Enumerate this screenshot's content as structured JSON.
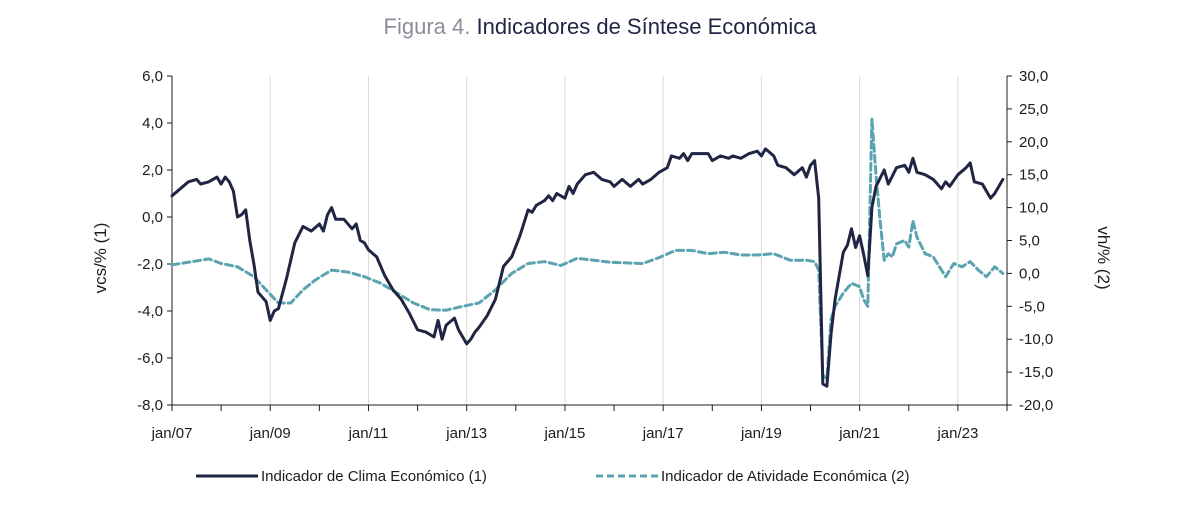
{
  "figure": {
    "number_label": "Figura 4.",
    "title": "Indicadores de Síntese Económica"
  },
  "chart_data": {
    "type": "line",
    "title": "Indicadores de Síntese Económica",
    "ylabel_left": "vcs/% (1)",
    "ylabel_right": "vh/% (2)",
    "xlabel": "",
    "x_start": "2007-01",
    "x_end": "2023-12",
    "xticks": [
      "jan/07",
      "jan/09",
      "jan/11",
      "jan/13",
      "jan/15",
      "jan/17",
      "jan/19",
      "jan/21",
      "jan/23"
    ],
    "ylim_left": [
      -8,
      6
    ],
    "yticks_left": [
      "6,0",
      "4,0",
      "2,0",
      "0,0",
      "-2,0",
      "-4,0",
      "-6,0",
      "-8,0"
    ],
    "ylim_right": [
      -20,
      30
    ],
    "yticks_right": [
      "30,0",
      "25,0",
      "20,0",
      "15,0",
      "10,0",
      "5,0",
      "0,0",
      "-5,0",
      "-10,0",
      "-15,0",
      "-20,0"
    ],
    "grid": "vertical lines at yearly ticks",
    "legend_position": "bottom",
    "colors": {
      "clima": "#1f2542",
      "atividade": "#5ba3b0"
    },
    "series": [
      {
        "name": "Indicador de Clima Económico (1)",
        "axis": "left",
        "style": "solid",
        "points": [
          [
            "2007-01",
            0.9
          ],
          [
            "2007-03",
            1.2
          ],
          [
            "2007-05",
            1.5
          ],
          [
            "2007-07",
            1.6
          ],
          [
            "2007-08",
            1.4
          ],
          [
            "2007-10",
            1.5
          ],
          [
            "2007-12",
            1.7
          ],
          [
            "2008-01",
            1.4
          ],
          [
            "2008-02",
            1.7
          ],
          [
            "2008-03",
            1.5
          ],
          [
            "2008-04",
            1.1
          ],
          [
            "2008-05",
            0.0
          ],
          [
            "2008-06",
            0.1
          ],
          [
            "2008-07",
            0.3
          ],
          [
            "2008-08",
            -1.0
          ],
          [
            "2008-09",
            -2.0
          ],
          [
            "2008-10",
            -3.2
          ],
          [
            "2008-12",
            -3.6
          ],
          [
            "2009-01",
            -4.4
          ],
          [
            "2009-02",
            -4.0
          ],
          [
            "2009-03",
            -3.9
          ],
          [
            "2009-05",
            -2.6
          ],
          [
            "2009-07",
            -1.1
          ],
          [
            "2009-09",
            -0.4
          ],
          [
            "2009-11",
            -0.6
          ],
          [
            "2010-01",
            -0.3
          ],
          [
            "2010-02",
            -0.6
          ],
          [
            "2010-03",
            0.1
          ],
          [
            "2010-04",
            0.4
          ],
          [
            "2010-05",
            -0.1
          ],
          [
            "2010-07",
            -0.1
          ],
          [
            "2010-09",
            -0.5
          ],
          [
            "2010-10",
            -0.3
          ],
          [
            "2010-11",
            -1.0
          ],
          [
            "2010-12",
            -1.1
          ],
          [
            "2011-01",
            -1.4
          ],
          [
            "2011-03",
            -1.7
          ],
          [
            "2011-05",
            -2.5
          ],
          [
            "2011-07",
            -3.1
          ],
          [
            "2011-09",
            -3.5
          ],
          [
            "2011-11",
            -4.1
          ],
          [
            "2012-01",
            -4.8
          ],
          [
            "2012-03",
            -4.9
          ],
          [
            "2012-05",
            -5.1
          ],
          [
            "2012-06",
            -4.4
          ],
          [
            "2012-07",
            -5.2
          ],
          [
            "2012-08",
            -4.6
          ],
          [
            "2012-10",
            -4.3
          ],
          [
            "2012-11",
            -4.8
          ],
          [
            "2013-01",
            -5.4
          ],
          [
            "2013-02",
            -5.2
          ],
          [
            "2013-03",
            -4.9
          ],
          [
            "2013-04",
            -4.7
          ],
          [
            "2013-06",
            -4.2
          ],
          [
            "2013-08",
            -3.5
          ],
          [
            "2013-10",
            -2.1
          ],
          [
            "2013-12",
            -1.7
          ],
          [
            "2014-02",
            -0.8
          ],
          [
            "2014-04",
            0.3
          ],
          [
            "2014-05",
            0.2
          ],
          [
            "2014-06",
            0.5
          ],
          [
            "2014-08",
            0.7
          ],
          [
            "2014-09",
            0.9
          ],
          [
            "2014-10",
            0.7
          ],
          [
            "2014-11",
            1.0
          ],
          [
            "2015-01",
            0.8
          ],
          [
            "2015-02",
            1.3
          ],
          [
            "2015-03",
            1.0
          ],
          [
            "2015-04",
            1.4
          ],
          [
            "2015-06",
            1.8
          ],
          [
            "2015-08",
            1.9
          ],
          [
            "2015-10",
            1.6
          ],
          [
            "2015-12",
            1.5
          ],
          [
            "2016-01",
            1.3
          ],
          [
            "2016-03",
            1.6
          ],
          [
            "2016-05",
            1.3
          ],
          [
            "2016-07",
            1.6
          ],
          [
            "2016-08",
            1.4
          ],
          [
            "2016-10",
            1.6
          ],
          [
            "2016-12",
            1.9
          ],
          [
            "2017-02",
            2.1
          ],
          [
            "2017-03",
            2.6
          ],
          [
            "2017-05",
            2.5
          ],
          [
            "2017-06",
            2.7
          ],
          [
            "2017-07",
            2.4
          ],
          [
            "2017-08",
            2.7
          ],
          [
            "2017-10",
            2.7
          ],
          [
            "2017-12",
            2.7
          ],
          [
            "2018-01",
            2.4
          ],
          [
            "2018-03",
            2.6
          ],
          [
            "2018-05",
            2.5
          ],
          [
            "2018-06",
            2.6
          ],
          [
            "2018-08",
            2.5
          ],
          [
            "2018-10",
            2.7
          ],
          [
            "2018-12",
            2.8
          ],
          [
            "2019-01",
            2.6
          ],
          [
            "2019-02",
            2.9
          ],
          [
            "2019-04",
            2.6
          ],
          [
            "2019-05",
            2.2
          ],
          [
            "2019-07",
            2.1
          ],
          [
            "2019-09",
            1.8
          ],
          [
            "2019-11",
            2.1
          ],
          [
            "2019-12",
            1.7
          ],
          [
            "2020-01",
            2.2
          ],
          [
            "2020-02",
            2.4
          ],
          [
            "2020-03",
            0.8
          ],
          [
            "2020-04",
            -7.1
          ],
          [
            "2020-05",
            -7.2
          ],
          [
            "2020-06",
            -5.0
          ],
          [
            "2020-07",
            -3.5
          ],
          [
            "2020-09",
            -1.5
          ],
          [
            "2020-10",
            -1.2
          ],
          [
            "2020-11",
            -0.5
          ],
          [
            "2020-12",
            -1.3
          ],
          [
            "2021-01",
            -0.8
          ],
          [
            "2021-02",
            -1.6
          ],
          [
            "2021-03",
            -2.5
          ],
          [
            "2021-04",
            0.4
          ],
          [
            "2021-05",
            1.3
          ],
          [
            "2021-07",
            2.0
          ],
          [
            "2021-08",
            1.4
          ],
          [
            "2021-10",
            2.1
          ],
          [
            "2021-12",
            2.2
          ],
          [
            "2022-01",
            1.9
          ],
          [
            "2022-02",
            2.5
          ],
          [
            "2022-03",
            1.9
          ],
          [
            "2022-05",
            1.8
          ],
          [
            "2022-07",
            1.6
          ],
          [
            "2022-09",
            1.2
          ],
          [
            "2022-10",
            1.5
          ],
          [
            "2022-11",
            1.3
          ],
          [
            "2023-01",
            1.8
          ],
          [
            "2023-03",
            2.1
          ],
          [
            "2023-04",
            2.3
          ],
          [
            "2023-05",
            1.5
          ],
          [
            "2023-07",
            1.4
          ],
          [
            "2023-08",
            1.1
          ],
          [
            "2023-09",
            0.8
          ],
          [
            "2023-10",
            1.0
          ],
          [
            "2023-12",
            1.6
          ]
        ]
      },
      {
        "name": "Indicador de Atividade Económica (2)",
        "axis": "right",
        "style": "dashed",
        "points": [
          [
            "2007-01",
            1.3
          ],
          [
            "2007-06",
            1.8
          ],
          [
            "2007-10",
            2.2
          ],
          [
            "2008-01",
            1.5
          ],
          [
            "2008-05",
            1.0
          ],
          [
            "2008-09",
            -0.5
          ],
          [
            "2008-12",
            -2.5
          ],
          [
            "2009-03",
            -4.5
          ],
          [
            "2009-06",
            -4.5
          ],
          [
            "2009-09",
            -2.5
          ],
          [
            "2009-12",
            -1.0
          ],
          [
            "2010-04",
            0.5
          ],
          [
            "2010-08",
            0.2
          ],
          [
            "2010-12",
            -0.5
          ],
          [
            "2011-04",
            -1.5
          ],
          [
            "2011-08",
            -3.0
          ],
          [
            "2011-12",
            -4.5
          ],
          [
            "2012-04",
            -5.5
          ],
          [
            "2012-08",
            -5.6
          ],
          [
            "2012-12",
            -5.0
          ],
          [
            "2013-04",
            -4.5
          ],
          [
            "2013-08",
            -2.5
          ],
          [
            "2013-12",
            0.0
          ],
          [
            "2014-04",
            1.5
          ],
          [
            "2014-08",
            1.8
          ],
          [
            "2014-12",
            1.2
          ],
          [
            "2015-04",
            2.3
          ],
          [
            "2015-08",
            2.0
          ],
          [
            "2015-12",
            1.7
          ],
          [
            "2016-04",
            1.6
          ],
          [
            "2016-08",
            1.5
          ],
          [
            "2016-12",
            2.4
          ],
          [
            "2017-04",
            3.5
          ],
          [
            "2017-08",
            3.5
          ],
          [
            "2017-12",
            3.0
          ],
          [
            "2018-04",
            3.2
          ],
          [
            "2018-08",
            2.8
          ],
          [
            "2018-12",
            2.8
          ],
          [
            "2019-04",
            3.0
          ],
          [
            "2019-08",
            2.0
          ],
          [
            "2019-12",
            2.0
          ],
          [
            "2020-02",
            1.8
          ],
          [
            "2020-03",
            0.5
          ],
          [
            "2020-04",
            -15.5
          ],
          [
            "2020-05",
            -16.0
          ],
          [
            "2020-06",
            -7.0
          ],
          [
            "2020-07",
            -5.0
          ],
          [
            "2020-09",
            -3.0
          ],
          [
            "2020-11",
            -1.5
          ],
          [
            "2021-01",
            -2.0
          ],
          [
            "2021-02",
            -4.0
          ],
          [
            "2021-03",
            -5.0
          ],
          [
            "2021-04",
            23.5
          ],
          [
            "2021-05",
            15.0
          ],
          [
            "2021-06",
            8.0
          ],
          [
            "2021-07",
            2.0
          ],
          [
            "2021-08",
            3.0
          ],
          [
            "2021-09",
            2.5
          ],
          [
            "2021-10",
            4.5
          ],
          [
            "2021-12",
            5.0
          ],
          [
            "2022-01",
            4.0
          ],
          [
            "2022-02",
            8.0
          ],
          [
            "2022-03",
            5.5
          ],
          [
            "2022-05",
            3.0
          ],
          [
            "2022-07",
            2.5
          ],
          [
            "2022-09",
            0.5
          ],
          [
            "2022-10",
            -0.5
          ],
          [
            "2022-12",
            1.5
          ],
          [
            "2023-02",
            1.0
          ],
          [
            "2023-04",
            1.8
          ],
          [
            "2023-06",
            0.5
          ],
          [
            "2023-08",
            -0.5
          ],
          [
            "2023-10",
            1.0
          ],
          [
            "2023-12",
            0.0
          ]
        ]
      }
    ]
  }
}
